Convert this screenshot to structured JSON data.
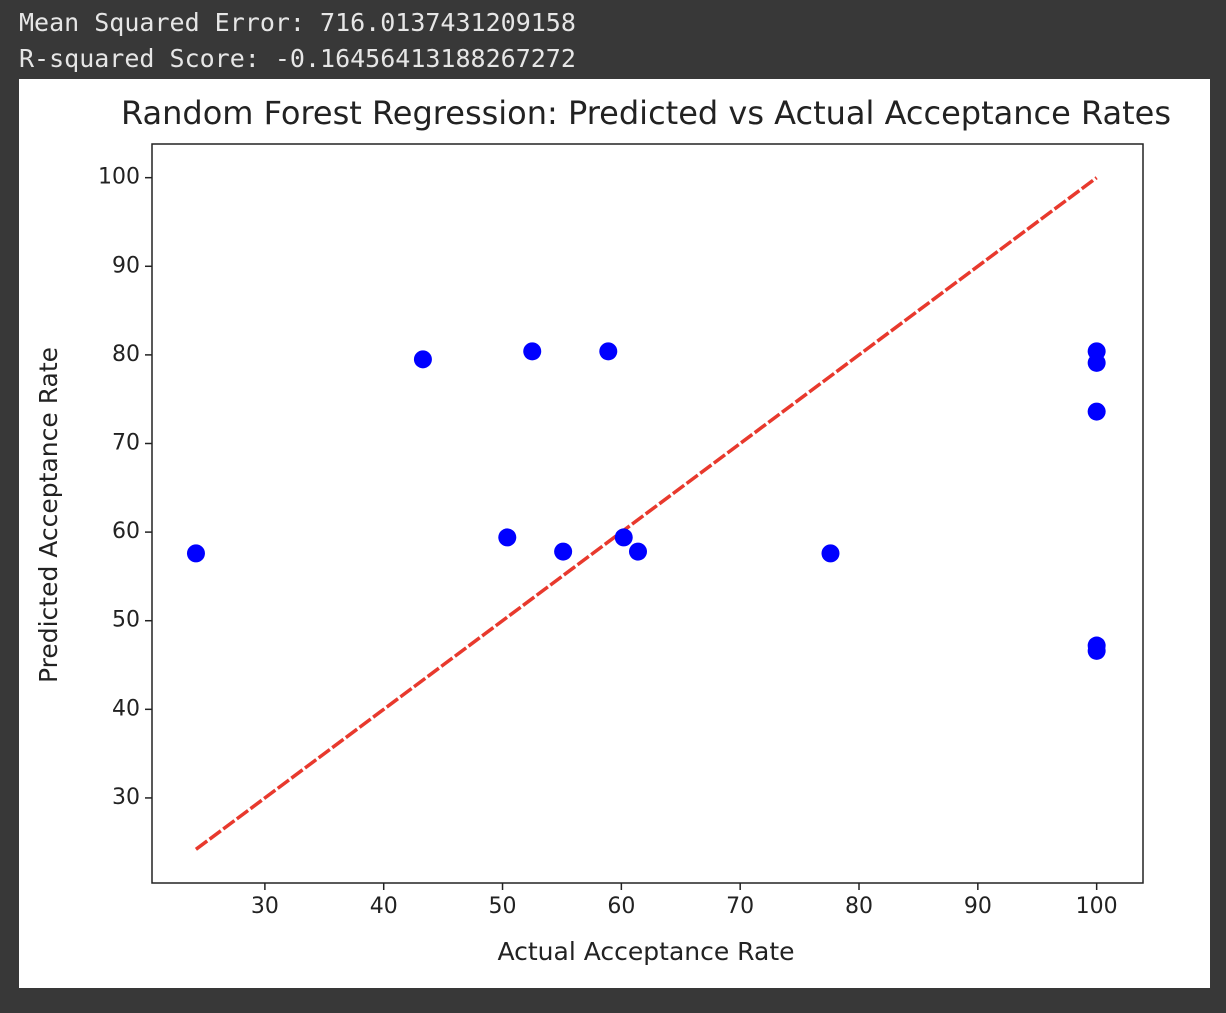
{
  "console": [
    "Mean Squared Error: 716.0137431209158",
    "R-squared Score: -0.16456413188267272"
  ],
  "chart_data": {
    "type": "scatter",
    "title": "Random Forest Regression: Predicted vs Actual Acceptance Rates",
    "x_label": "Actual Acceptance Rate",
    "y_label": "Predicted Acceptance Rate",
    "series": [
      {
        "color": "#0000ff",
        "x": [
          24.2,
          43.3,
          50.4,
          52.5,
          55.1,
          58.9,
          60.2,
          61.4,
          77.6,
          100,
          100,
          100,
          100,
          100
        ],
        "values": [
          57.6,
          79.5,
          59.4,
          80.4,
          57.8,
          80.4,
          59.4,
          57.8,
          57.6,
          80.4,
          79.1,
          73.6,
          47.2,
          46.6
        ]
      }
    ],
    "reference_line": {
      "color": "#e8392d",
      "x": [
        24.2,
        100
      ],
      "values": [
        24.2,
        100
      ]
    },
    "xlim": [
      20.5,
      103.9
    ],
    "ylim": [
      20.4,
      103.8
    ],
    "xticks": [
      30,
      40,
      50,
      60,
      70,
      80,
      90,
      100
    ],
    "yticks": [
      30,
      40,
      50,
      60,
      70,
      80,
      90,
      100
    ]
  }
}
